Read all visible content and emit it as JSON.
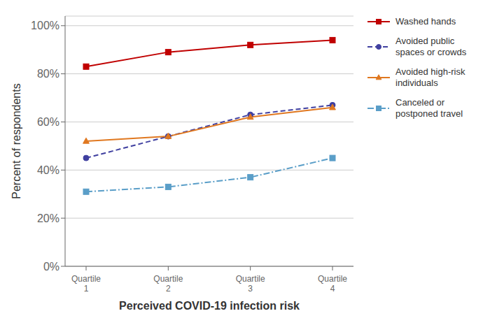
{
  "chart_data": {
    "type": "line",
    "xlabel": "Perceived COVID-19 infection risk",
    "ylabel": "Percent of respondents",
    "categories": [
      "Quartile\n1",
      "Quartile\n2",
      "Quartile\n3",
      "Quartile\n4"
    ],
    "series": [
      {
        "name": "Washed hands",
        "color": "#c00000",
        "marker": "square",
        "line_style": "solid",
        "values": [
          0.83,
          0.89,
          0.92,
          0.94
        ]
      },
      {
        "name": "Avoided public\nspaces or crowds",
        "color": "#4040a0",
        "marker": "circle",
        "line_style": "dashed",
        "values": [
          0.45,
          0.54,
          0.63,
          0.67
        ]
      },
      {
        "name": "Avoided high-risk\nindividuals",
        "color": "#e07820",
        "marker": "triangle",
        "line_style": "solid",
        "values": [
          0.52,
          0.54,
          0.62,
          0.66
        ]
      },
      {
        "name": "Canceled or\npostponed travel",
        "color": "#5a9ec8",
        "marker": "square",
        "line_style": "dashdot",
        "values": [
          0.31,
          0.33,
          0.37,
          0.45
        ]
      }
    ],
    "ylim": [
      0.0,
      1.04
    ],
    "yticks": [
      {
        "value": 0.0,
        "label": "0%"
      },
      {
        "value": 0.2,
        "label": "20%"
      },
      {
        "value": 0.4,
        "label": "40%"
      },
      {
        "value": 0.6,
        "label": "60%"
      },
      {
        "value": 0.8,
        "label": "80%"
      },
      {
        "value": 1.0,
        "label": "100%"
      }
    ],
    "grid": true,
    "legend": "right"
  }
}
